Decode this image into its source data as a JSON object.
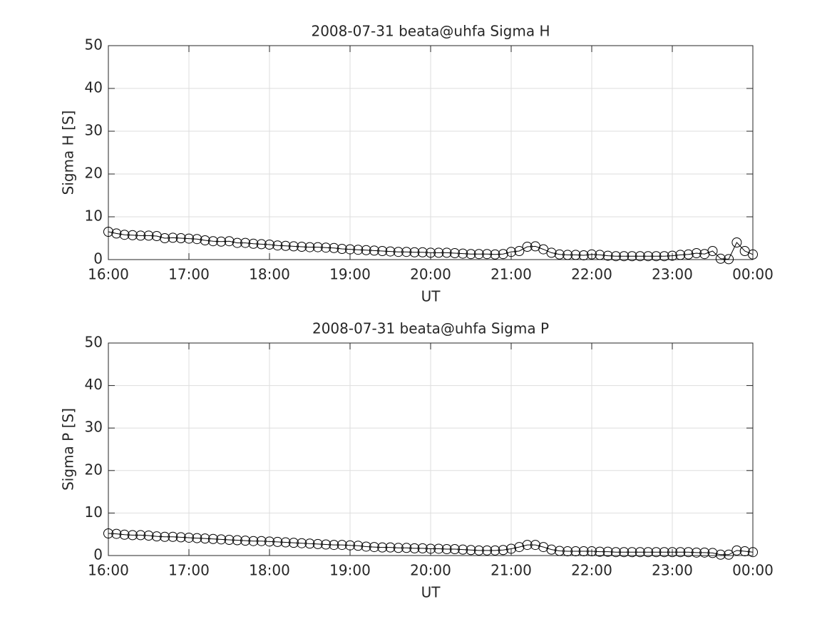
{
  "chart_data": [
    {
      "type": "line",
      "title": "2008-07-31  beata@uhfa Sigma H",
      "xlabel": "UT",
      "ylabel": "Sigma H [S]",
      "x": [
        16,
        16.1,
        16.2,
        16.3,
        16.4,
        16.5,
        16.6,
        16.7,
        16.8,
        16.9,
        17,
        17.1,
        17.2,
        17.3,
        17.4,
        17.5,
        17.6,
        17.7,
        17.8,
        17.9,
        18,
        18.1,
        18.2,
        18.3,
        18.4,
        18.5,
        18.6,
        18.7,
        18.8,
        18.9,
        19,
        19.1,
        19.2,
        19.3,
        19.4,
        19.5,
        19.6,
        19.7,
        19.8,
        19.9,
        20,
        20.1,
        20.2,
        20.3,
        20.4,
        20.5,
        20.6,
        20.7,
        20.8,
        20.9,
        21,
        21.1,
        21.2,
        21.3,
        21.4,
        21.5,
        21.6,
        21.7,
        21.8,
        21.9,
        22,
        22.1,
        22.2,
        22.3,
        22.4,
        22.5,
        22.6,
        22.7,
        22.8,
        22.9,
        23,
        23.1,
        23.2,
        23.3,
        23.4,
        23.5,
        23.6,
        23.7,
        23.8,
        23.9,
        24
      ],
      "values": [
        6.5,
        6.1,
        5.8,
        5.7,
        5.6,
        5.6,
        5.5,
        5.0,
        5.1,
        5.0,
        4.9,
        4.8,
        4.5,
        4.3,
        4.2,
        4.3,
        3.9,
        3.9,
        3.7,
        3.6,
        3.5,
        3.3,
        3.2,
        3.1,
        3.0,
        2.9,
        2.9,
        2.8,
        2.7,
        2.5,
        2.4,
        2.3,
        2.2,
        2.1,
        2.0,
        1.9,
        1.8,
        1.8,
        1.7,
        1.7,
        1.6,
        1.6,
        1.6,
        1.5,
        1.4,
        1.3,
        1.3,
        1.3,
        1.2,
        1.3,
        1.8,
        2.0,
        3.0,
        3.1,
        2.4,
        1.6,
        1.2,
        1.1,
        1.1,
        1.0,
        1.2,
        1.1,
        0.9,
        0.8,
        0.8,
        0.8,
        0.8,
        0.8,
        0.8,
        0.8,
        0.9,
        1.1,
        1.2,
        1.5,
        1.3,
        2.0,
        0.2,
        0.1,
        4.0,
        2.0,
        1.2
      ],
      "color": "#000000",
      "marker": "circle",
      "xlim": [
        16,
        24
      ],
      "xticks": [
        {
          "value": 16,
          "label": "16:00"
        },
        {
          "value": 17,
          "label": "17:00"
        },
        {
          "value": 18,
          "label": "18:00"
        },
        {
          "value": 19,
          "label": "19:00"
        },
        {
          "value": 20,
          "label": "20:00"
        },
        {
          "value": 21,
          "label": "21:00"
        },
        {
          "value": 22,
          "label": "22:00"
        },
        {
          "value": 23,
          "label": "23:00"
        },
        {
          "value": 24,
          "label": "00:00"
        }
      ],
      "ylim": [
        0,
        50
      ],
      "yticks": [
        0,
        10,
        20,
        30,
        40,
        50
      ],
      "grid": true
    },
    {
      "type": "line",
      "title": "2008-07-31  beata@uhfa Sigma P",
      "xlabel": "UT",
      "ylabel": "Sigma P [S]",
      "x": [
        16,
        16.1,
        16.2,
        16.3,
        16.4,
        16.5,
        16.6,
        16.7,
        16.8,
        16.9,
        17,
        17.1,
        17.2,
        17.3,
        17.4,
        17.5,
        17.6,
        17.7,
        17.8,
        17.9,
        18,
        18.1,
        18.2,
        18.3,
        18.4,
        18.5,
        18.6,
        18.7,
        18.8,
        18.9,
        19,
        19.1,
        19.2,
        19.3,
        19.4,
        19.5,
        19.6,
        19.7,
        19.8,
        19.9,
        20,
        20.1,
        20.2,
        20.3,
        20.4,
        20.5,
        20.6,
        20.7,
        20.8,
        20.9,
        21,
        21.1,
        21.2,
        21.3,
        21.4,
        21.5,
        21.6,
        21.7,
        21.8,
        21.9,
        22,
        22.1,
        22.2,
        22.3,
        22.4,
        22.5,
        22.6,
        22.7,
        22.8,
        22.9,
        23,
        23.1,
        23.2,
        23.3,
        23.4,
        23.5,
        23.6,
        23.7,
        23.8,
        23.9,
        24
      ],
      "values": [
        5.2,
        5.1,
        4.9,
        4.8,
        4.8,
        4.7,
        4.5,
        4.4,
        4.4,
        4.3,
        4.2,
        4.1,
        4.0,
        3.9,
        3.8,
        3.7,
        3.6,
        3.5,
        3.4,
        3.4,
        3.3,
        3.2,
        3.1,
        3.0,
        2.9,
        2.8,
        2.7,
        2.6,
        2.5,
        2.5,
        2.4,
        2.3,
        2.1,
        2.0,
        1.9,
        1.9,
        1.8,
        1.8,
        1.7,
        1.7,
        1.6,
        1.6,
        1.5,
        1.5,
        1.4,
        1.3,
        1.2,
        1.2,
        1.2,
        1.3,
        1.6,
        2.0,
        2.5,
        2.5,
        2.0,
        1.4,
        1.1,
        1.0,
        1.0,
        1.0,
        1.0,
        0.9,
        0.9,
        0.8,
        0.8,
        0.8,
        0.8,
        0.8,
        0.8,
        0.8,
        0.8,
        0.8,
        0.8,
        0.7,
        0.7,
        0.6,
        0.2,
        0.2,
        1.2,
        1.0,
        0.8
      ],
      "color": "#000000",
      "marker": "circle",
      "xlim": [
        16,
        24
      ],
      "xticks": [
        {
          "value": 16,
          "label": "16:00"
        },
        {
          "value": 17,
          "label": "17:00"
        },
        {
          "value": 18,
          "label": "18:00"
        },
        {
          "value": 19,
          "label": "19:00"
        },
        {
          "value": 20,
          "label": "20:00"
        },
        {
          "value": 21,
          "label": "21:00"
        },
        {
          "value": 22,
          "label": "22:00"
        },
        {
          "value": 23,
          "label": "23:00"
        },
        {
          "value": 24,
          "label": "00:00"
        }
      ],
      "ylim": [
        0,
        50
      ],
      "yticks": [
        0,
        10,
        20,
        30,
        40,
        50
      ],
      "grid": true
    }
  ]
}
